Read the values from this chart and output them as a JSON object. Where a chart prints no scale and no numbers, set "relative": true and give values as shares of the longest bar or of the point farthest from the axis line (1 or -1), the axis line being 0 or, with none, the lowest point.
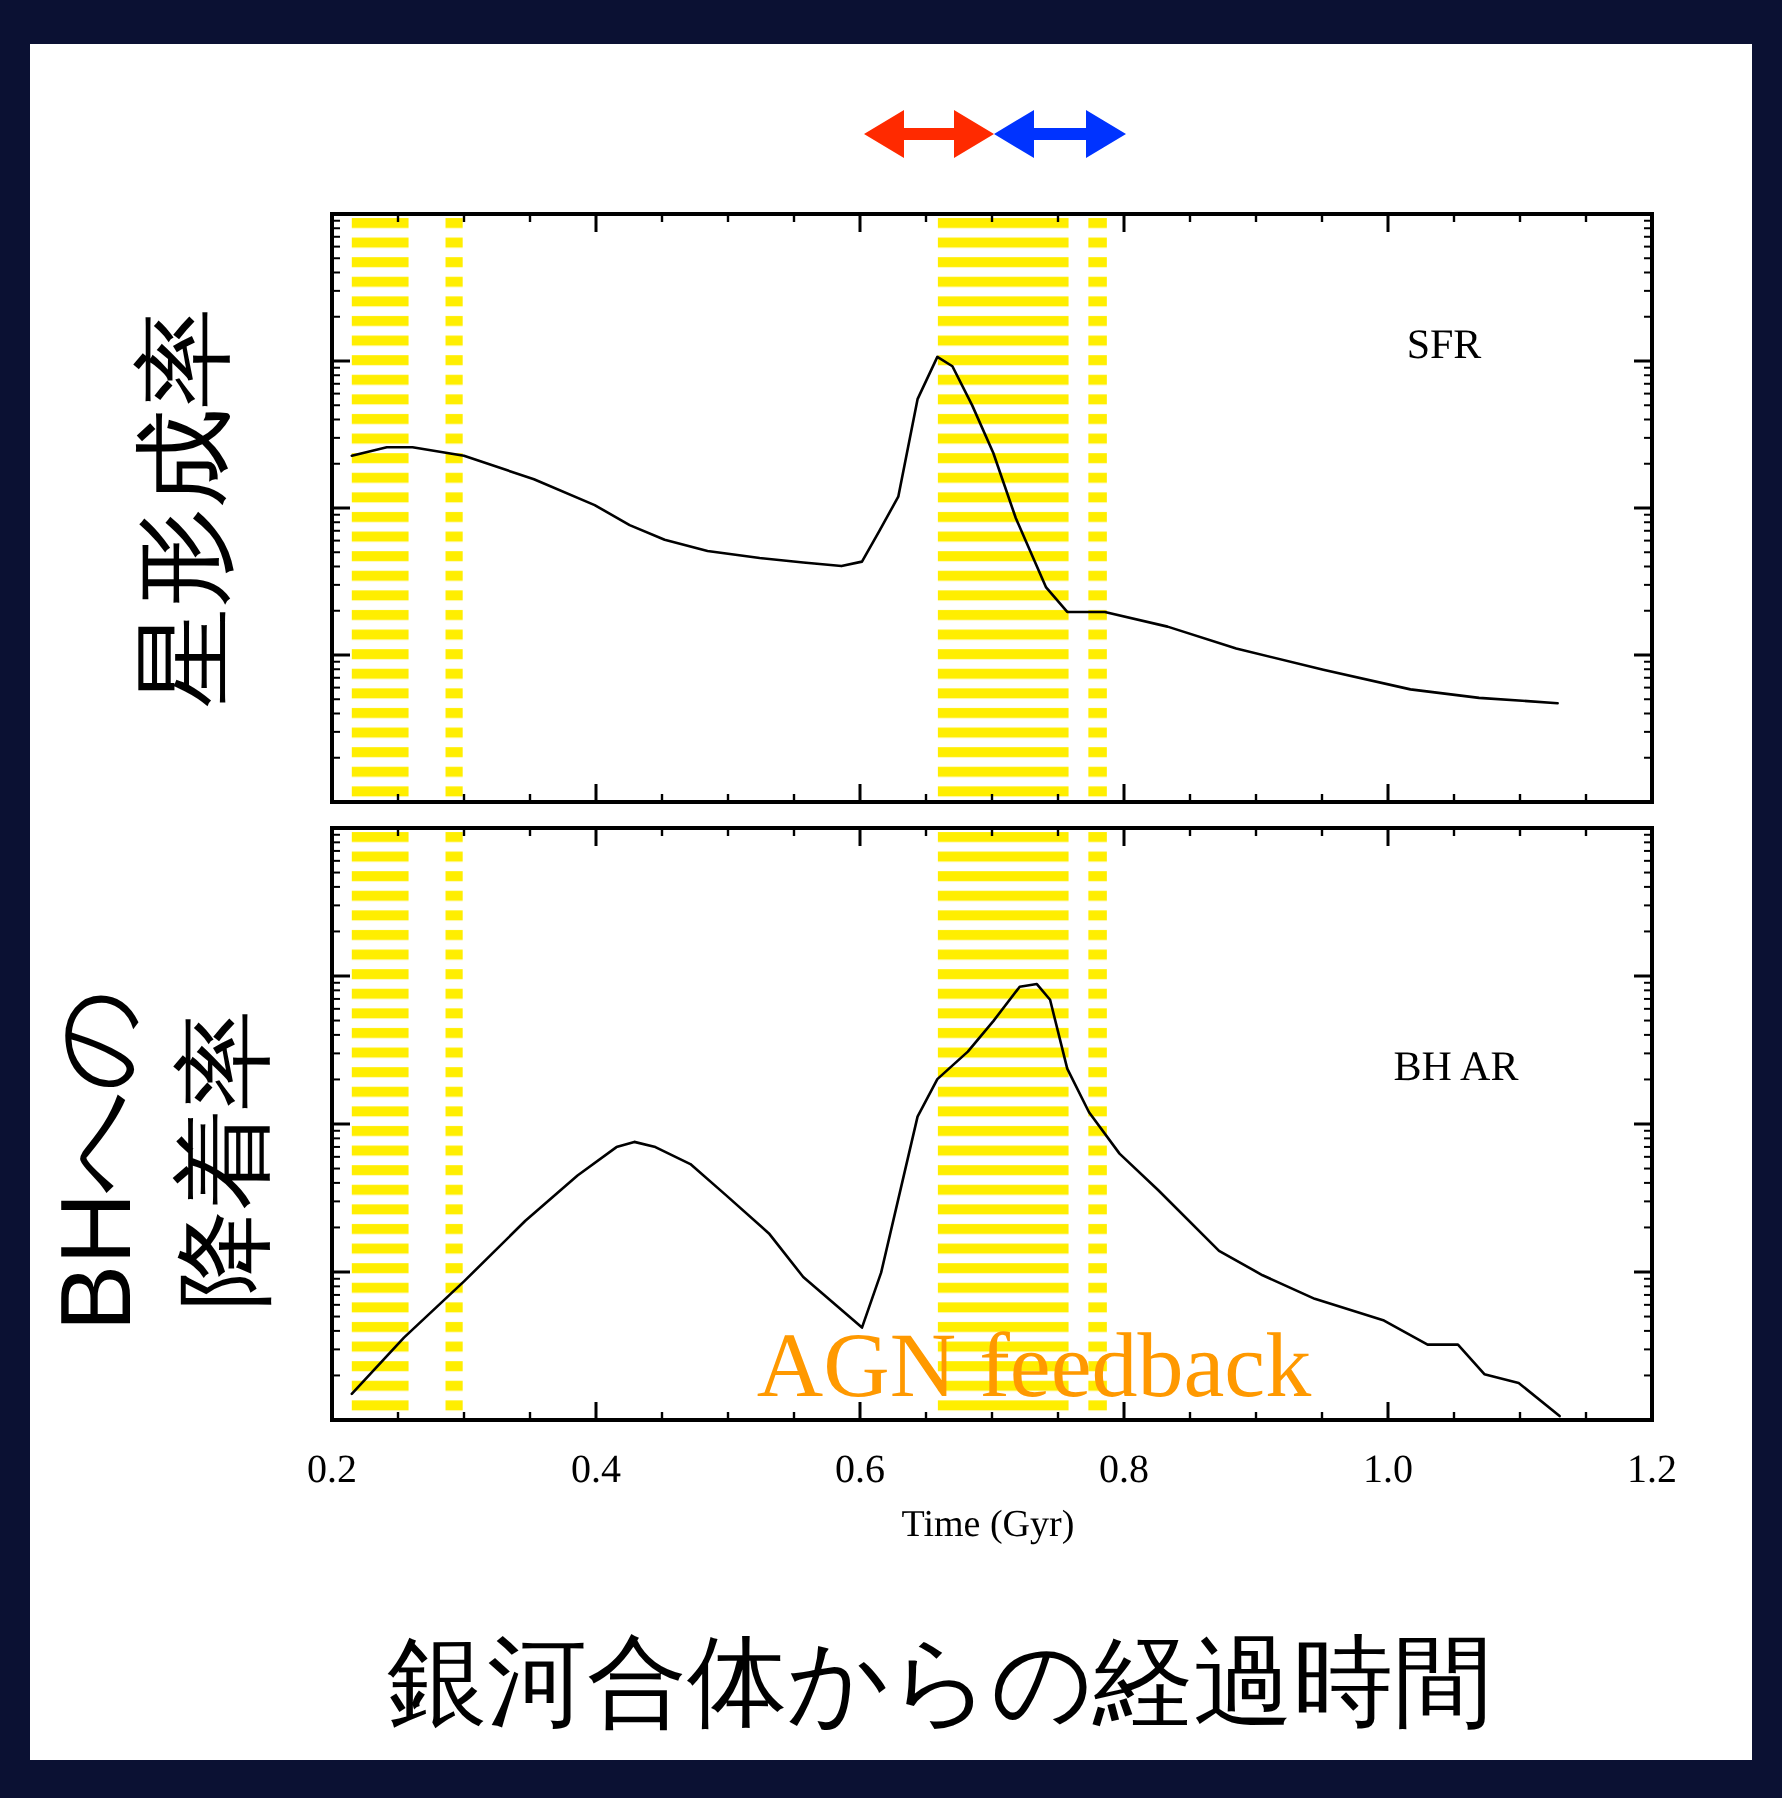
{
  "chart_data": [
    {
      "type": "line",
      "relative": true,
      "tick_labels": false,
      "ylabel": "星形成率",
      "xlim": [
        0.2,
        1.2
      ],
      "xticks": [
        0.2,
        0.4,
        0.6,
        0.8,
        1,
        1.2
      ],
      "x": [
        0.215,
        0.2415,
        0.261,
        0.3,
        0.353,
        0.399,
        0.4255,
        0.452,
        0.4845,
        0.524,
        0.557,
        0.586,
        0.6015,
        0.6147,
        0.629,
        0.6436,
        0.6586,
        0.67,
        0.685,
        0.701,
        0.718,
        0.741,
        0.757,
        0.7855,
        0.833,
        0.885,
        0.951,
        1.017,
        1.069,
        1.1285
      ],
      "series": [
        {
          "name": "SFR",
          "color": "#000000",
          "values": [
            0.778,
            0.797,
            0.797,
            0.778,
            0.725,
            0.667,
            0.622,
            0.589,
            0.564,
            0.548,
            0.538,
            0.53,
            0.54,
            0.609,
            0.686,
            0.905,
            1,
            0.979,
            0.891,
            0.784,
            0.638,
            0.482,
            0.427,
            0.427,
            0.394,
            0.345,
            0.297,
            0.253,
            0.234,
            0.222
          ]
        }
      ],
      "bands": [
        {
          "axis": "x",
          "from": 0.215,
          "to": 0.258,
          "color": "#ffee00"
        },
        {
          "axis": "x",
          "from": 0.286,
          "to": 0.299,
          "color": "#ffee00"
        },
        {
          "axis": "x",
          "from": 0.659,
          "to": 0.758,
          "color": "#ffee00"
        },
        {
          "axis": "x",
          "from": 0.773,
          "to": 0.787,
          "color": "#ffee00"
        }
      ]
    },
    {
      "type": "line",
      "relative": true,
      "tick_labels": "x",
      "ylabel": "BHへの降着率",
      "xlabel": "Time (Gyr)",
      "xlim": [
        0.2,
        1.2
      ],
      "xticks": [
        0.2,
        0.4,
        0.6,
        0.8,
        {
          "value": 1,
          "label": "1.0"
        },
        1.2
      ],
      "annotations": [
        "AGN feedback",
        "銀河合体からの経過時間"
      ],
      "x": [
        0.215,
        0.2545,
        0.3,
        0.3465,
        0.386,
        0.4155,
        0.429,
        0.445,
        0.4715,
        0.498,
        0.531,
        0.557,
        0.6015,
        0.616,
        0.6436,
        0.6586,
        0.6817,
        0.701,
        0.721,
        0.734,
        0.744,
        0.757,
        0.7735,
        0.7966,
        0.826,
        0.872,
        0.905,
        0.9445,
        0.997,
        1.03,
        1.053,
        1.073,
        1.099,
        1.13
      ],
      "series": [
        {
          "name": "BH AR",
          "color": "#000000",
          "values": [
            0.06,
            0.189,
            0.318,
            0.457,
            0.561,
            0.626,
            0.638,
            0.626,
            0.587,
            0.517,
            0.428,
            0.328,
            0.212,
            0.338,
            0.696,
            0.782,
            0.845,
            0.915,
            0.994,
            1,
            0.964,
            0.806,
            0.706,
            0.611,
            0.527,
            0.388,
            0.332,
            0.278,
            0.228,
            0.173,
            0.173,
            0.105,
            0.085,
            0.009
          ]
        }
      ],
      "bands": [
        {
          "axis": "x",
          "from": 0.215,
          "to": 0.258,
          "color": "#ffee00"
        },
        {
          "axis": "x",
          "from": 0.286,
          "to": 0.299,
          "color": "#ffee00"
        },
        {
          "axis": "x",
          "from": 0.659,
          "to": 0.758,
          "color": "#ffee00"
        },
        {
          "axis": "x",
          "from": 0.773,
          "to": 0.787,
          "color": "#ffee00"
        }
      ]
    }
  ]
}
